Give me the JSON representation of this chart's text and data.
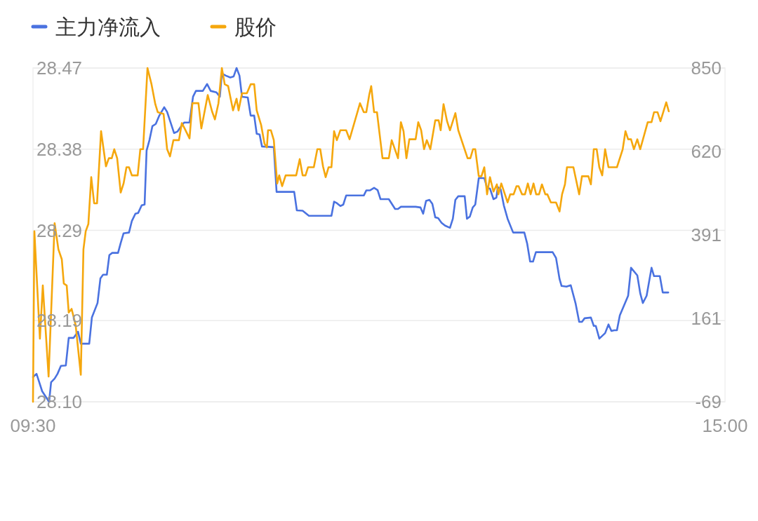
{
  "chart_data": {
    "type": "line",
    "legend": "top left",
    "grid": "y",
    "marker": "none",
    "line_style": "solid",
    "xlim": [
      9.5,
      15
    ],
    "xticks": [
      {
        "value": 9.5,
        "label": "09:30"
      },
      {
        "value": 15,
        "label": "15:00"
      }
    ],
    "ylim": [
      28.1,
      28.47
    ],
    "yticks": [
      {
        "value": 28.1,
        "label": "28.10"
      },
      28.19,
      28.29,
      28.38,
      28.47
    ],
    "y2lim": [
      -69,
      850
    ],
    "y2ticks": [
      -69,
      161,
      391,
      620,
      850
    ],
    "series": [
      {
        "name": "主力净流入",
        "color": "#4a72e0",
        "axis": "y2",
        "x": [
          9.5,
          9.528,
          9.544,
          9.573,
          9.628,
          9.644,
          9.672,
          9.695,
          9.722,
          9.761,
          9.784,
          9.823,
          9.858,
          9.88,
          9.947,
          9.968,
          10.013,
          10.036,
          10.057,
          10.087,
          10.107,
          10.13,
          10.176,
          10.197,
          10.22,
          10.263,
          10.286,
          10.314,
          10.336,
          10.364,
          10.387,
          10.403,
          10.426,
          10.449,
          10.476,
          10.504,
          10.543,
          10.566,
          10.621,
          10.648,
          10.678,
          10.701,
          10.744,
          10.772,
          10.795,
          10.85,
          10.884,
          10.912,
          10.958,
          10.985,
          11.001,
          11.033,
          11.068,
          11.095,
          11.118,
          11.141,
          11.161,
          11.207,
          11.23,
          11.258,
          11.278,
          11.301,
          11.32,
          11.414,
          11.436,
          11.576,
          11.597,
          11.643,
          11.693,
          11.872,
          11.893,
          11.915,
          11.943,
          11.966,
          11.989,
          12.129,
          12.149,
          12.177,
          12.211,
          12.239,
          12.262,
          12.328,
          12.378,
          12.401,
          12.424,
          12.541,
          12.58,
          12.601,
          12.624,
          12.651,
          12.674,
          12.697,
          12.72,
          12.747,
          12.775,
          12.814,
          12.837,
          12.857,
          12.88,
          12.931,
          12.949,
          12.972,
          12.995,
          13.015,
          13.043,
          13.087,
          13.109,
          13.132,
          13.16,
          13.183,
          13.194,
          13.217,
          13.242,
          13.272,
          13.316,
          13.405,
          13.428,
          13.451,
          13.474,
          13.497,
          13.63,
          13.657,
          13.685,
          13.701,
          13.74,
          13.774,
          13.813,
          13.841,
          13.863,
          13.884,
          13.934,
          13.957,
          13.973,
          14.001,
          14.047,
          14.074,
          14.097,
          14.12,
          14.141,
          14.164,
          14.203,
          14.23,
          14.253,
          14.303,
          14.326,
          14.347,
          14.377,
          14.416,
          14.436,
          14.482,
          14.505,
          14.549
        ],
        "values": [
          -1,
          8,
          -9,
          -40,
          -69,
          -15,
          -5,
          8,
          30,
          31,
          107,
          107,
          124,
          91,
          91,
          163,
          203,
          271,
          281,
          281,
          335,
          341,
          341,
          368,
          395,
          397,
          429,
          449,
          451,
          472,
          474,
          623,
          652,
          690,
          696,
          719,
          742,
          729,
          671,
          675,
          690,
          700,
          700,
          771,
          787,
          787,
          806,
          787,
          783,
          771,
          835,
          829,
          824,
          827,
          850,
          829,
          771,
          769,
          719,
          719,
          669,
          667,
          634,
          632,
          509,
          509,
          458,
          457,
          443,
          443,
          482,
          478,
          470,
          474,
          499,
          499,
          513,
          513,
          520,
          514,
          489,
          489,
          462,
          462,
          468,
          468,
          466,
          449,
          484,
          487,
          476,
          439,
          437,
          424,
          416,
          410,
          435,
          487,
          497,
          497,
          435,
          441,
          466,
          474,
          547,
          547,
          520,
          518,
          489,
          493,
          522,
          516,
          472,
          435,
          397,
          397,
          366,
          317,
          317,
          343,
          343,
          327,
          269,
          250,
          248,
          252,
          201,
          151,
          151,
          161,
          163,
          140,
          140,
          105,
          120,
          144,
          126,
          128,
          128,
          169,
          201,
          223,
          300,
          279,
          230,
          203,
          223,
          300,
          277,
          277,
          232,
          232
        ]
      },
      {
        "name": "股价",
        "color": "#f5a70d",
        "axis": "y",
        "x": [
          9.5,
          9.511,
          9.555,
          9.578,
          9.624,
          9.672,
          9.702,
          9.729,
          9.745,
          9.768,
          9.784,
          9.807,
          9.839,
          9.88,
          9.901,
          9.919,
          9.94,
          9.963,
          9.986,
          10.009,
          10.041,
          10.08,
          10.103,
          10.126,
          10.146,
          10.169,
          10.197,
          10.22,
          10.243,
          10.263,
          10.286,
          10.332,
          10.353,
          10.375,
          10.41,
          10.442,
          10.472,
          10.492,
          10.538,
          10.566,
          10.589,
          10.616,
          10.66,
          10.683,
          10.705,
          10.744,
          10.767,
          10.815,
          10.838,
          10.889,
          10.923,
          10.946,
          10.974,
          11.001,
          11.024,
          11.051,
          11.09,
          11.118,
          11.134,
          11.161,
          11.2,
          11.23,
          11.258,
          11.278,
          11.313,
          11.34,
          11.359,
          11.368,
          11.391,
          11.414,
          11.441,
          11.457,
          11.48,
          11.508,
          11.592,
          11.62,
          11.643,
          11.666,
          11.686,
          11.732,
          11.76,
          11.783,
          11.805,
          11.826,
          11.849,
          11.872,
          11.893,
          11.915,
          11.943,
          11.989,
          12.016,
          12.099,
          12.129,
          12.149,
          12.172,
          12.188,
          12.211,
          12.234,
          12.278,
          12.328,
          12.351,
          12.401,
          12.424,
          12.445,
          12.468,
          12.491,
          12.541,
          12.562,
          12.585,
          12.608,
          12.63,
          12.658,
          12.697,
          12.724,
          12.74,
          12.763,
          12.791,
          12.814,
          12.857,
          12.88,
          12.954,
          12.976,
          12.997,
          13.015,
          13.043,
          13.064,
          13.087,
          13.109,
          13.132,
          13.16,
          13.187,
          13.199,
          13.222,
          13.272,
          13.293,
          13.32,
          13.343,
          13.359,
          13.387,
          13.41,
          13.433,
          13.455,
          13.478,
          13.499,
          13.522,
          13.545,
          13.572,
          13.588,
          13.616,
          13.657,
          13.685,
          13.705,
          13.728,
          13.744,
          13.795,
          13.841,
          13.863,
          13.914,
          13.934,
          13.957,
          13.98,
          14.001,
          14.024,
          14.047,
          14.074,
          14.141,
          14.187,
          14.209,
          14.23,
          14.253,
          14.276,
          14.303,
          14.326,
          14.386,
          14.416,
          14.436,
          14.464,
          14.487,
          14.533,
          14.553
        ],
        "values": [
          28.1,
          28.289,
          28.17,
          28.229,
          28.128,
          28.298,
          28.269,
          28.258,
          28.231,
          28.229,
          28.199,
          28.203,
          28.185,
          28.13,
          28.269,
          28.289,
          28.297,
          28.349,
          28.32,
          28.32,
          28.4,
          28.361,
          28.37,
          28.37,
          28.38,
          28.37,
          28.332,
          28.342,
          28.36,
          28.36,
          28.351,
          28.351,
          28.38,
          28.38,
          28.47,
          28.452,
          28.43,
          28.421,
          28.419,
          28.38,
          28.372,
          28.39,
          28.39,
          28.409,
          28.403,
          28.392,
          28.431,
          28.431,
          28.403,
          28.44,
          28.422,
          28.413,
          28.431,
          28.47,
          28.452,
          28.45,
          28.423,
          28.436,
          28.423,
          28.442,
          28.442,
          28.452,
          28.452,
          28.423,
          28.407,
          28.386,
          28.382,
          28.401,
          28.401,
          28.39,
          28.342,
          28.351,
          28.339,
          28.351,
          28.351,
          28.369,
          28.351,
          28.351,
          28.36,
          28.36,
          28.38,
          28.38,
          28.361,
          28.349,
          28.36,
          28.36,
          28.4,
          28.39,
          28.401,
          28.401,
          28.391,
          28.431,
          28.421,
          28.421,
          28.44,
          28.45,
          28.421,
          28.421,
          28.37,
          28.37,
          28.39,
          28.37,
          28.41,
          28.4,
          28.37,
          28.391,
          28.391,
          28.41,
          28.401,
          28.38,
          28.39,
          28.38,
          28.412,
          28.412,
          28.401,
          28.43,
          28.411,
          28.401,
          28.42,
          28.401,
          28.37,
          28.37,
          28.38,
          28.38,
          28.35,
          28.35,
          28.36,
          28.33,
          28.349,
          28.333,
          28.341,
          28.33,
          28.342,
          28.321,
          28.33,
          28.33,
          28.339,
          28.339,
          28.33,
          28.33,
          28.342,
          28.33,
          28.342,
          28.33,
          28.33,
          28.341,
          28.33,
          28.33,
          28.321,
          28.321,
          28.311,
          28.33,
          28.341,
          28.36,
          28.36,
          28.33,
          28.35,
          28.35,
          28.341,
          28.38,
          28.38,
          28.36,
          28.351,
          28.38,
          28.36,
          28.36,
          28.38,
          28.4,
          28.391,
          28.391,
          28.38,
          28.391,
          28.38,
          28.41,
          28.41,
          28.421,
          28.421,
          28.411,
          28.432,
          28.422
        ]
      }
    ]
  }
}
